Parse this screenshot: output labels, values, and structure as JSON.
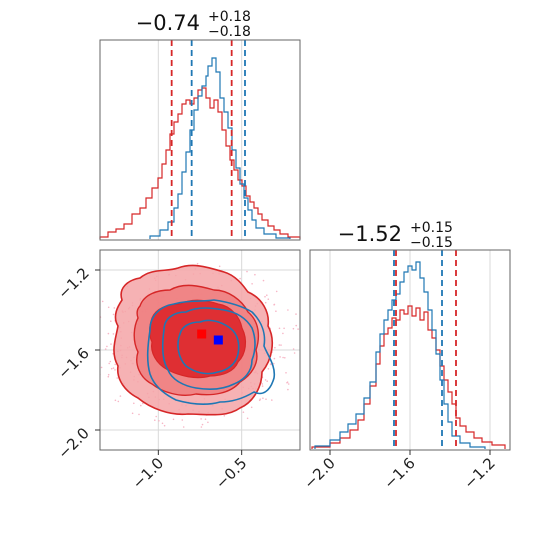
{
  "chart_data": {
    "type": "corner",
    "colors": {
      "red": "#d62728",
      "blue": "#1f77b4",
      "light_red": "#f5a5a7",
      "grid": "#d9d9d9"
    },
    "panels": [
      {
        "id": "hist-x",
        "type": "histogram",
        "title": {
          "value": "−0.74",
          "sup": "+0.18",
          "sub": "−0.18"
        },
        "xlim": [
          -1.35,
          -0.15
        ],
        "quantiles": {
          "red": [
            -0.92,
            -0.56
          ],
          "blue": [
            -0.8,
            -0.48
          ]
        },
        "grid": true
      },
      {
        "id": "hist-y",
        "type": "histogram",
        "title": {
          "value": "−1.52",
          "sup": "+0.15",
          "sub": "−0.15"
        },
        "xlim": [
          -2.1,
          -1.1
        ],
        "xticks": [
          "−2.0",
          "−1.6",
          "−1.2"
        ],
        "xtick_values": [
          -2.0,
          -1.6,
          -1.2
        ],
        "quantiles": {
          "red": [
            -1.67,
            -1.37
          ],
          "blue": [
            -1.68,
            -1.44
          ]
        },
        "grid": true
      },
      {
        "id": "joint",
        "type": "contour",
        "xlim": [
          -1.35,
          -0.15
        ],
        "ylim": [
          -2.1,
          -1.1
        ],
        "xticks": [
          "−1.0",
          "−0.5"
        ],
        "xtick_values": [
          -1.0,
          -0.5
        ],
        "yticks": [
          "−1.2",
          "−1.6",
          "−2.0"
        ],
        "ytick_values": [
          -1.2,
          -1.6,
          -2.0
        ],
        "grid": true,
        "truth_markers": [
          {
            "series": "red",
            "x": -0.74,
            "y": -1.52
          },
          {
            "series": "blue",
            "x": -0.64,
            "y": -1.55
          }
        ]
      }
    ]
  }
}
